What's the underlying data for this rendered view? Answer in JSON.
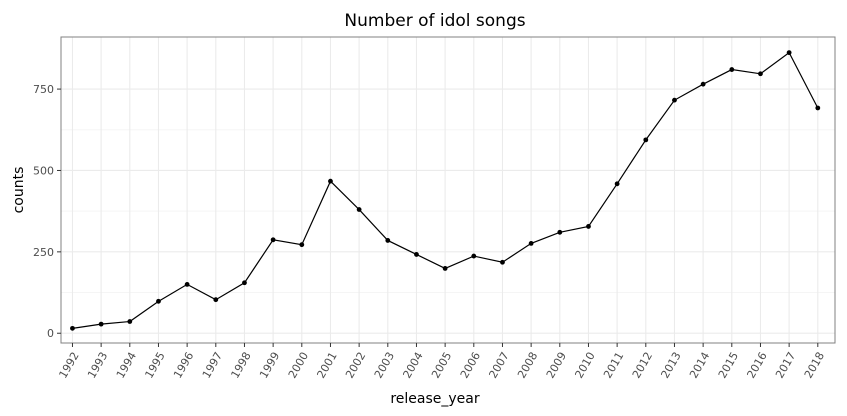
{
  "chart_data": {
    "type": "line",
    "title": "Number of idol songs",
    "xlabel": "release_year",
    "ylabel": "counts",
    "x": [
      1992,
      1993,
      1994,
      1995,
      1996,
      1997,
      1998,
      1999,
      2000,
      2001,
      2002,
      2003,
      2004,
      2005,
      2006,
      2007,
      2008,
      2009,
      2010,
      2011,
      2012,
      2013,
      2014,
      2015,
      2016,
      2017,
      2018
    ],
    "x_tick_labels": [
      "1992",
      "1993",
      "1994",
      "1995",
      "1996",
      "1997",
      "1998",
      "1999",
      "2000",
      "2001",
      "2002",
      "2003",
      "2004",
      "2005",
      "2006",
      "2007",
      "2008",
      "2009",
      "2010",
      "2011",
      "2012",
      "2013",
      "2014",
      "2015",
      "2016",
      "2017",
      "2018"
    ],
    "series": [
      {
        "values": [
          15,
          28,
          36,
          98,
          150,
          103,
          155,
          287,
          272,
          467,
          380,
          285,
          242,
          199,
          237,
          218,
          276,
          310,
          328,
          459,
          594,
          716,
          765,
          810,
          797,
          862,
          692
        ]
      }
    ],
    "y_ticks": [
      0,
      250,
      500,
      750
    ],
    "y_tick_labels": [
      "0",
      "250",
      "500",
      "750"
    ],
    "xlim": [
      1991.6,
      2018.6
    ],
    "ylim": [
      -30,
      910
    ],
    "grid": true,
    "colors": {
      "line": "#000000",
      "grid_major": "#ebebeb",
      "grid_minor": "#f5f5f5",
      "panel_border": "#808080",
      "tick_label": "#4d4d4d"
    }
  }
}
